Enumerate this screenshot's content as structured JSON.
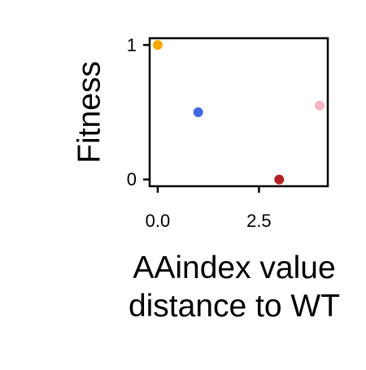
{
  "chart_data": {
    "type": "scatter",
    "title": "",
    "xlabel": "AAindex value\ndistance to WT",
    "ylabel": "Fitness",
    "xlim": [
      -0.2,
      4.2
    ],
    "ylim": [
      -0.05,
      1.05
    ],
    "xticks": [
      0,
      2.5
    ],
    "xtick_labels": [
      "0.0",
      "2.5"
    ],
    "yticks": [
      0,
      1
    ],
    "ytick_labels": [
      "0",
      "1"
    ],
    "grid": false,
    "legend": "none",
    "points": [
      {
        "x": 0.0,
        "y": 1.0,
        "color": "#F5A800"
      },
      {
        "x": 1.0,
        "y": 0.5,
        "color": "#4169E1"
      },
      {
        "x": 3.0,
        "y": 0.0,
        "color": "#B22222"
      },
      {
        "x": 4.0,
        "y": 0.55,
        "color": "#F4B6C2"
      }
    ]
  }
}
